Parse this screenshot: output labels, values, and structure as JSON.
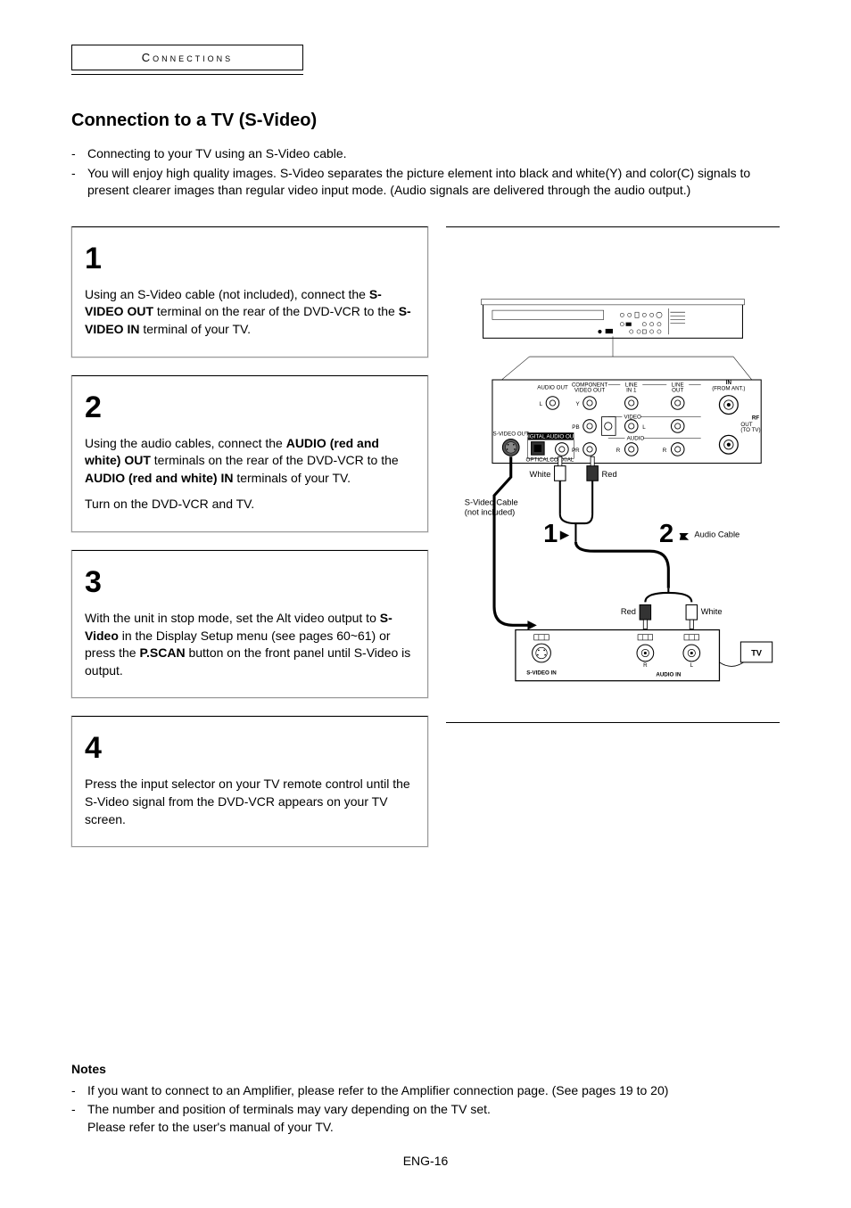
{
  "section_header": "Connections",
  "title": "Connection to a TV (S-Video)",
  "intro": [
    "Connecting to your TV using an S-Video cable.",
    "You will enjoy high quality images. S-Video separates the picture element into black and white(Y) and color(C) signals to present clearer images than regular video input mode. (Audio signals are delivered through the audio output.)"
  ],
  "steps": [
    {
      "num": "1",
      "paras": [
        "Using an S-Video cable (not included), connect the <b>S-VIDEO OUT</b> terminal on the rear of the DVD-VCR to the <b>S-VIDEO IN</b> terminal of your TV."
      ]
    },
    {
      "num": "2",
      "paras": [
        "Using the audio cables, connect the <b>AUDIO (red and white) OUT</b> terminals on the rear of the DVD-VCR to the <b>AUDIO (red and white) IN</b> terminals of your TV.",
        "Turn on the DVD-VCR and TV."
      ]
    },
    {
      "num": "3",
      "paras": [
        "With the unit in stop mode, set the Alt video output to <b>S-Video</b> in the Display Setup menu (see pages 60~61) or press the <b>P.SCAN</b> button on the front panel until S-Video is output."
      ]
    },
    {
      "num": "4",
      "paras": [
        "Press the input selector on your TV remote control until the S-Video signal from the DVD-VCR appears on your TV screen."
      ]
    }
  ],
  "notes_title": "Notes",
  "notes": [
    "If you want to connect to an Amplifier, please refer to the Amplifier connection page. (See pages 19 to 20)",
    "The number and position of terminals may vary depending on the TV set.<br>Please refer to the user's manual of your TV."
  ],
  "page_footer": "ENG-16",
  "diagram": {
    "labels": {
      "svideo_cable": "S-Video Cable",
      "not_included": "(not included)",
      "audio_cable": "Audio Cable",
      "white": "White",
      "red": "Red",
      "tv": "TV",
      "svideo_in": "S-VIDEO IN",
      "audio_in": "AUDIO IN",
      "svideo_out": "S-VIDEO OUT",
      "digital_audio": "DIGITAL AUDIO OUT",
      "optical": "OPTICAL",
      "coaxial": "COAXIAL",
      "audio_out": "AUDIO OUT",
      "component": "COMPONENT",
      "video_out": "VIDEO OUT",
      "line_in1": "LINE",
      "in1": "IN 1",
      "line_out": "LINE",
      "out": "OUT",
      "video": "VIDEO",
      "audio": "AUDIO",
      "in_ant": "IN",
      "from_ant": "(FROM ANT.)",
      "out_tv": "OUT",
      "to_tv": "(TO TV)",
      "rf": "RF",
      "y": "Y",
      "pb": "PB",
      "pr": "PR",
      "l": "L",
      "r": "R",
      "r_ch": "R",
      "l_ch": "L",
      "step1": "1",
      "step2": "2"
    },
    "colors": {
      "line": "#000000",
      "fill_bg": "#ffffff"
    }
  }
}
